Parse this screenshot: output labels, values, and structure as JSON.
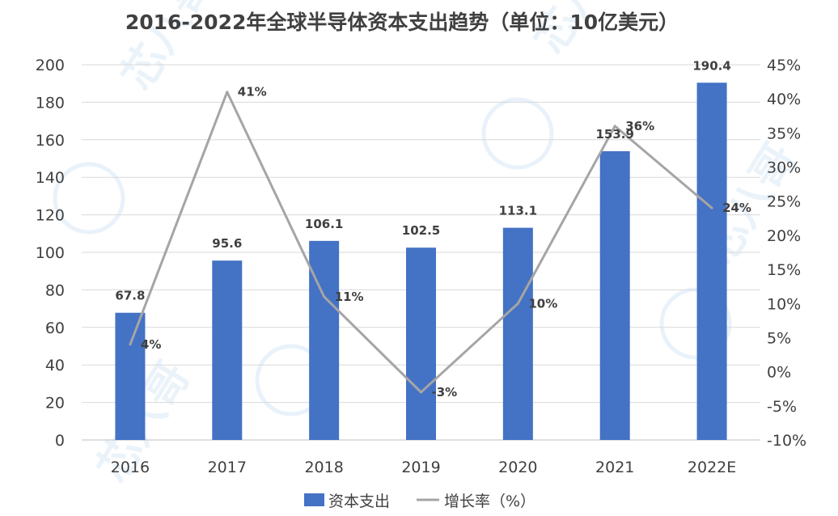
{
  "chart_data": {
    "type": "bar",
    "title": "2016-2022年全球半导体资本支出趋势（单位：10亿美元）",
    "categories": [
      "2016",
      "2017",
      "2018",
      "2019",
      "2020",
      "2021",
      "2022E"
    ],
    "series": [
      {
        "name": "资本支出",
        "type": "bar",
        "axis": "left",
        "values": [
          67.8,
          95.6,
          106.1,
          102.5,
          113.1,
          153.9,
          190.4
        ],
        "labels": [
          "67.8",
          "95.6",
          "106.1",
          "102.5",
          "113.1",
          "153.9",
          "190.4"
        ],
        "color": "#4472c4"
      },
      {
        "name": "增长率（%）",
        "type": "line",
        "axis": "right",
        "values": [
          4,
          41,
          11,
          -3,
          10,
          36,
          24
        ],
        "labels": [
          "4%",
          "41%",
          "11%",
          "-3%",
          "10%",
          "36%",
          "24%"
        ],
        "color": "#a5a5a5"
      }
    ],
    "y_left": {
      "min": 0,
      "max": 200,
      "step": 20,
      "ticks": [
        "0",
        "20",
        "40",
        "60",
        "80",
        "100",
        "120",
        "140",
        "160",
        "180",
        "200"
      ]
    },
    "y_right": {
      "min": -10,
      "max": 45,
      "step": 5,
      "ticks": [
        "-10%",
        "-5%",
        "0%",
        "5%",
        "10%",
        "15%",
        "20%",
        "25%",
        "30%",
        "35%",
        "40%",
        "45%"
      ]
    },
    "grid": true,
    "legend": "bottom",
    "watermark": "芯八哥"
  }
}
